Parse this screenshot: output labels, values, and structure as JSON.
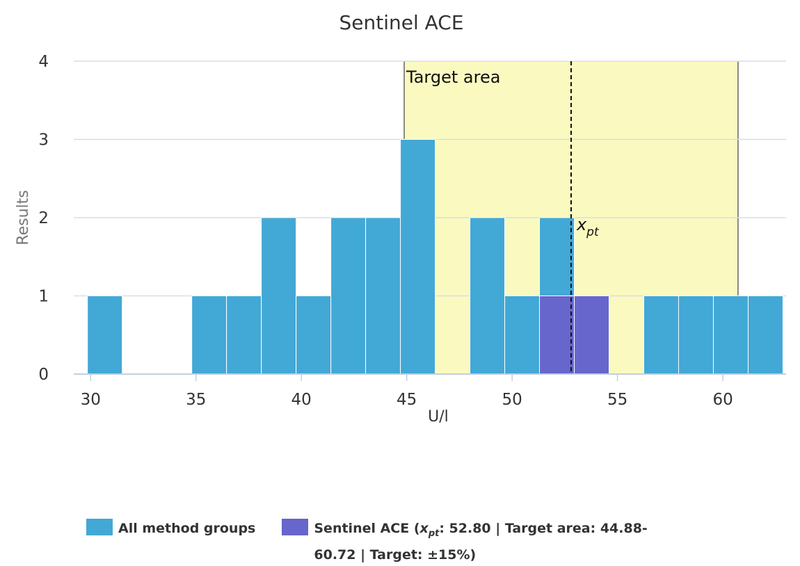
{
  "chart_data": {
    "type": "bar",
    "title": "Sentinel ACE",
    "xlabel": "U/l",
    "ylabel": "Results",
    "x_ticks": [
      "30",
      "35",
      "40",
      "45",
      "50",
      "55",
      "60"
    ],
    "y_ticks": [
      "0",
      "1",
      "2",
      "3",
      "4"
    ],
    "xlim": [
      29.2,
      63.0
    ],
    "ylim": [
      0,
      4
    ],
    "bin_width": 1.65,
    "bins_start": [
      29.85,
      31.5,
      33.15,
      34.8,
      36.45,
      38.1,
      39.75,
      41.4,
      43.05,
      44.7,
      46.35,
      48.0,
      49.65,
      51.3,
      52.95,
      54.6,
      56.25,
      57.9,
      59.55,
      61.2
    ],
    "series": [
      {
        "name": "All method groups",
        "values": [
          1,
          0,
          0,
          1,
          1,
          2,
          1,
          2,
          2,
          3,
          0,
          2,
          1,
          2,
          1,
          0,
          1,
          1,
          1,
          1
        ]
      },
      {
        "name": "Sentinel ACE (x_pt: 52.80 | Target area: 44.88-60.72 | Target: ±15%)",
        "values": [
          0,
          0,
          0,
          0,
          0,
          0,
          0,
          0,
          0,
          0,
          0,
          0,
          0,
          1,
          1,
          0,
          0,
          0,
          0,
          0
        ]
      }
    ],
    "target_area": {
      "label": "Target area",
      "from": 44.88,
      "to": 60.72
    },
    "x_pt": {
      "label": "x",
      "subscript": "pt",
      "value": 52.8
    },
    "grid": true,
    "legend_position": "bottom"
  },
  "colors": {
    "all_groups": "#42a8d6",
    "sentinel": "#6666cc",
    "target_area": "#fafac0",
    "grid": "#d8dde6"
  },
  "legend": {
    "items": [
      {
        "label": "All method groups"
      },
      {
        "label": "Sentinel ACE (x_pt: 52.80 | Target area: 44.88-60.72 | Target: ±15%)"
      }
    ]
  }
}
